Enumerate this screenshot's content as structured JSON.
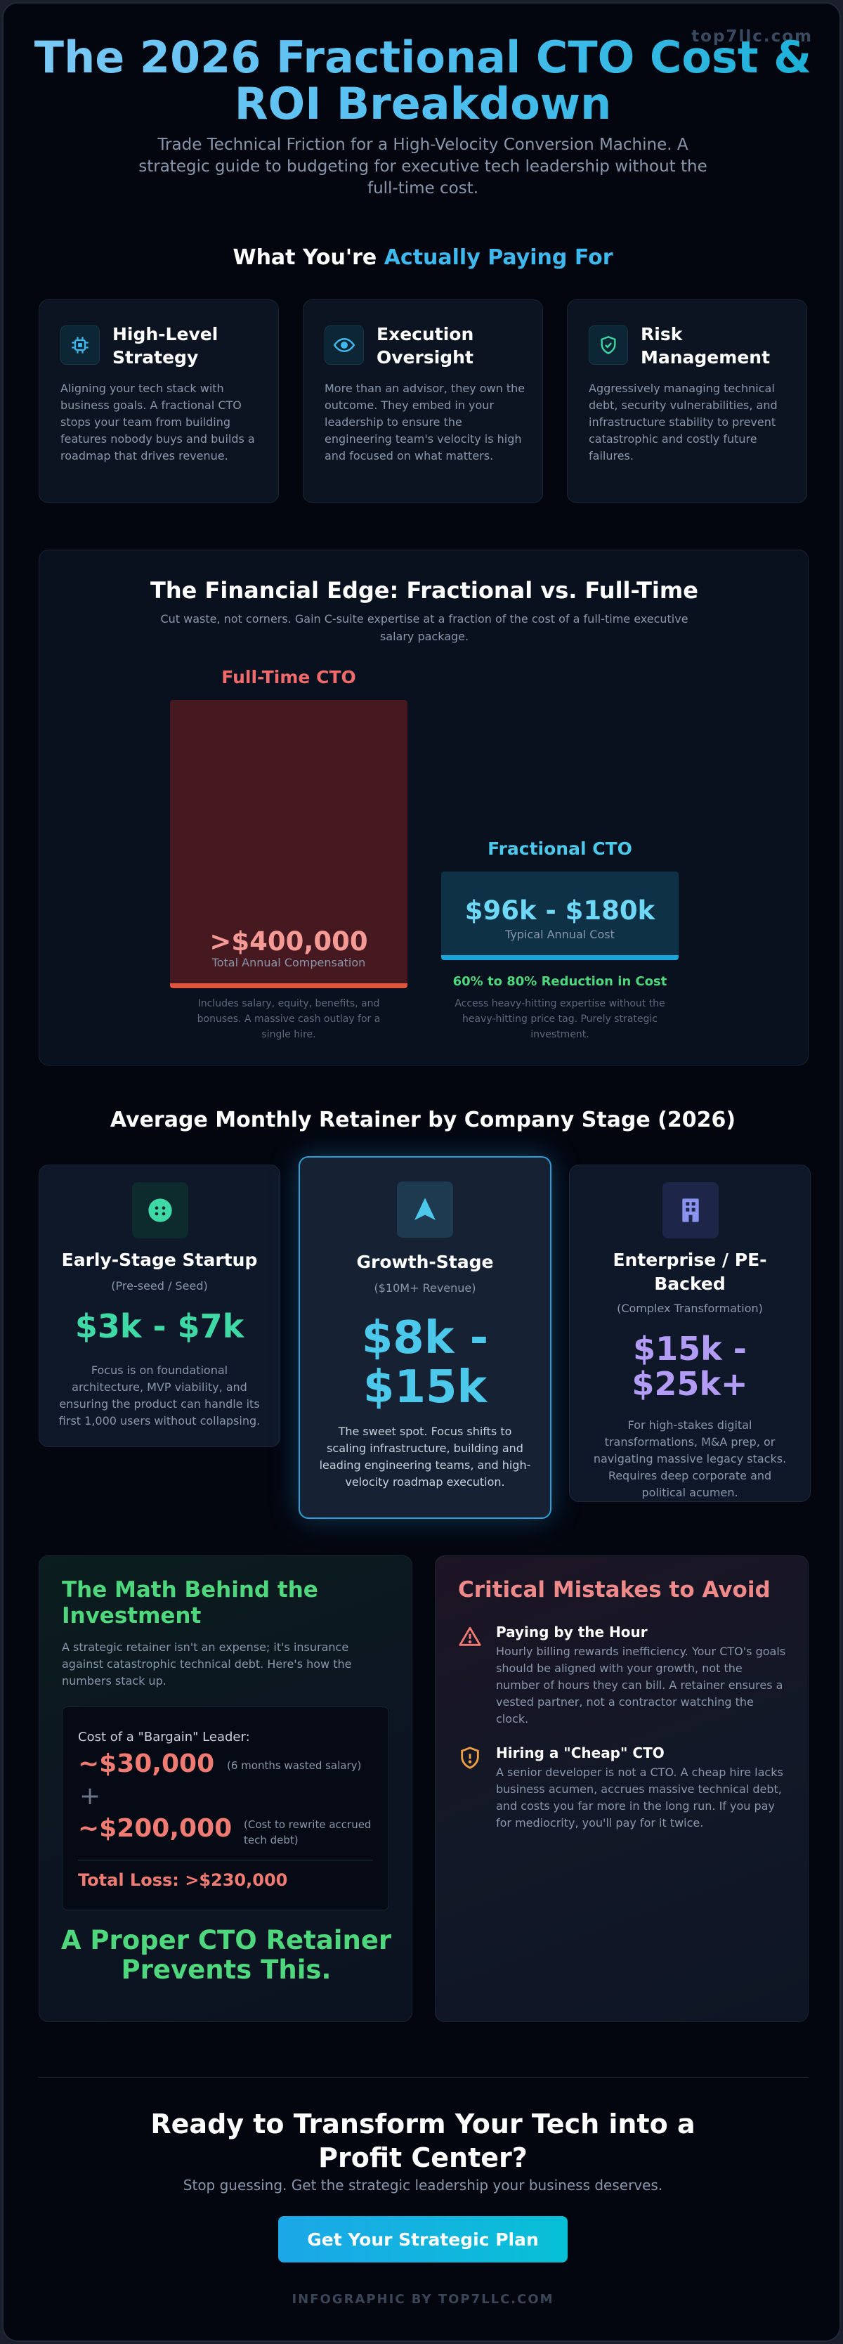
{
  "watermark": "top7llc.com",
  "hero": {
    "title": "The 2026 Fractional CTO Cost & ROI Breakdown",
    "subtitle": "Trade Technical Friction for a High-Velocity Conversion Machine. A strategic guide to budgeting for executive tech leadership without the full-time cost."
  },
  "paying_for": {
    "heading_prefix": "What You're",
    "heading_accent": "Actually Paying For",
    "cards": [
      {
        "icon": "chip-icon",
        "title": "High-Level Strategy",
        "description": "Aligning your tech stack with business goals. A fractional CTO stops your team from building features nobody buys and builds a roadmap that drives revenue."
      },
      {
        "icon": "eye-icon",
        "title": "Execution Oversight",
        "description": "More than an advisor, they own the outcome. They embed in your leadership to ensure the engineering team's velocity is high and focused on what matters."
      },
      {
        "icon": "shield-check-icon",
        "title": "Risk Management",
        "description": "Aggressively managing technical debt, security vulnerabilities, and infrastructure stability to prevent catastrophic and costly future failures."
      }
    ]
  },
  "financial_edge": {
    "title": "The Financial Edge: Fractional vs. Full-Time",
    "subtitle": "Cut waste, not corners. Gain C-suite expertise at a fraction of the cost of a full-time executive salary package.",
    "full_time": {
      "label": "Full-Time CTO",
      "value": ">$400,000",
      "caption": "Total Annual Compensation",
      "note": "Includes salary, equity, benefits, and bonuses. A massive cash outlay for a single hire.",
      "color": "#f06b6b"
    },
    "fractional": {
      "label": "Fractional CTO",
      "value": "$96k - $180k",
      "caption": "Typical Annual Cost",
      "reduction": "60% to 80% Reduction in Cost",
      "note": "Access heavy-hitting expertise without the heavy-hitting price tag. Purely strategic investment.",
      "color": "#4cc8ea"
    }
  },
  "retainer": {
    "heading": "Average Monthly Retainer by Company Stage (2026)",
    "stages": [
      {
        "icon": "face-icon",
        "title": "Early-Stage Startup",
        "subtitle": "(Pre-seed / Seed)",
        "price": "$3k - $7k",
        "description": "Focus is on foundational architecture, MVP viability, and ensuring the product can handle its first 1,000 users without collapsing.",
        "color": "#3fd9a6"
      },
      {
        "icon": "rocket-icon",
        "title": "Growth-Stage",
        "subtitle": "($10M+ Revenue)",
        "price": "$8k - $15k",
        "description": "The sweet spot. Focus shifts to scaling infrastructure, building and leading engineering teams, and high-velocity roadmap execution.",
        "color": "#4cc8ea"
      },
      {
        "icon": "building-icon",
        "title": "Enterprise / PE-Backed",
        "subtitle": "(Complex Transformation)",
        "price": "$15k - $25k+",
        "description": "For high-stakes digital transformations, M&A prep, or navigating massive legacy stacks. Requires deep corporate and political acumen.",
        "color": "#b39cf5"
      }
    ]
  },
  "math": {
    "title": "The Math Behind the Investment",
    "description": "A strategic retainer isn't an expense; it's insurance against catastrophic technical debt. Here's how the numbers stack up.",
    "calc_label": "Cost of a \"Bargain\" Leader:",
    "line1_amount": "~$30,000",
    "line1_note": "(6 months wasted salary)",
    "plus": "+",
    "line2_amount": "~$200,000",
    "line2_note": "(Cost to rewrite accrued tech debt)",
    "total": "Total Loss: >$230,000",
    "cta": "A Proper CTO Retainer Prevents This."
  },
  "mistakes": {
    "title": "Critical Mistakes to Avoid",
    "items": [
      {
        "icon": "warning-icon",
        "title": "Paying by the Hour",
        "description": "Hourly billing rewards inefficiency. Your CTO's goals should be aligned with your growth, not the number of hours they can bill. A retainer ensures a vested partner, not a contractor watching the clock."
      },
      {
        "icon": "shield-alert-icon",
        "title": "Hiring a \"Cheap\" CTO",
        "description": "A senior developer is not a CTO. A cheap hire lacks business acumen, accrues massive technical debt, and costs you far more in the long run. If you pay for mediocrity, you'll pay for it twice."
      }
    ]
  },
  "cta": {
    "title": "Ready to Transform Your Tech into a Profit Center?",
    "subtitle": "Stop guessing. Get the strategic leadership your business deserves.",
    "button": "Get Your Strategic Plan"
  },
  "footer": "INFOGRAPHIC BY TOP7LLC.COM"
}
